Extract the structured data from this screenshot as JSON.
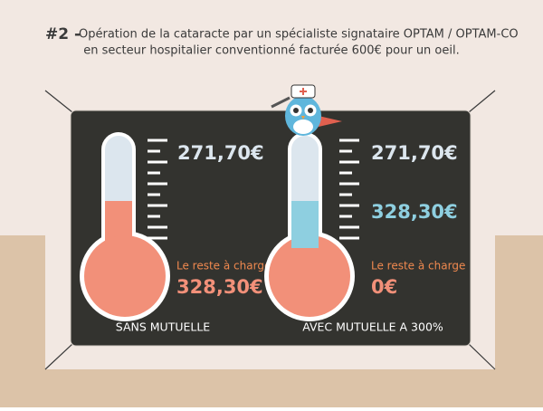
{
  "header": {
    "number": "#2 -",
    "line1": "Opération de la cataracte par un spécialiste signataire OPTAM / OPTAM-CO",
    "line2": "en secteur hospitalier conventionné facturée 600€ pour un oeil."
  },
  "panels": [
    {
      "caption": "SANS MUTUELLE",
      "top_amount": "271,70€",
      "reste_label": "Le reste à charge",
      "reste_amount": "328,30€"
    },
    {
      "caption": "AVEC MUTUELLE A 300%",
      "top_amount": "271,70€",
      "mid_amount": "328,30€",
      "reste_label": "Le reste à charge",
      "reste_amount": "0€"
    }
  ]
}
